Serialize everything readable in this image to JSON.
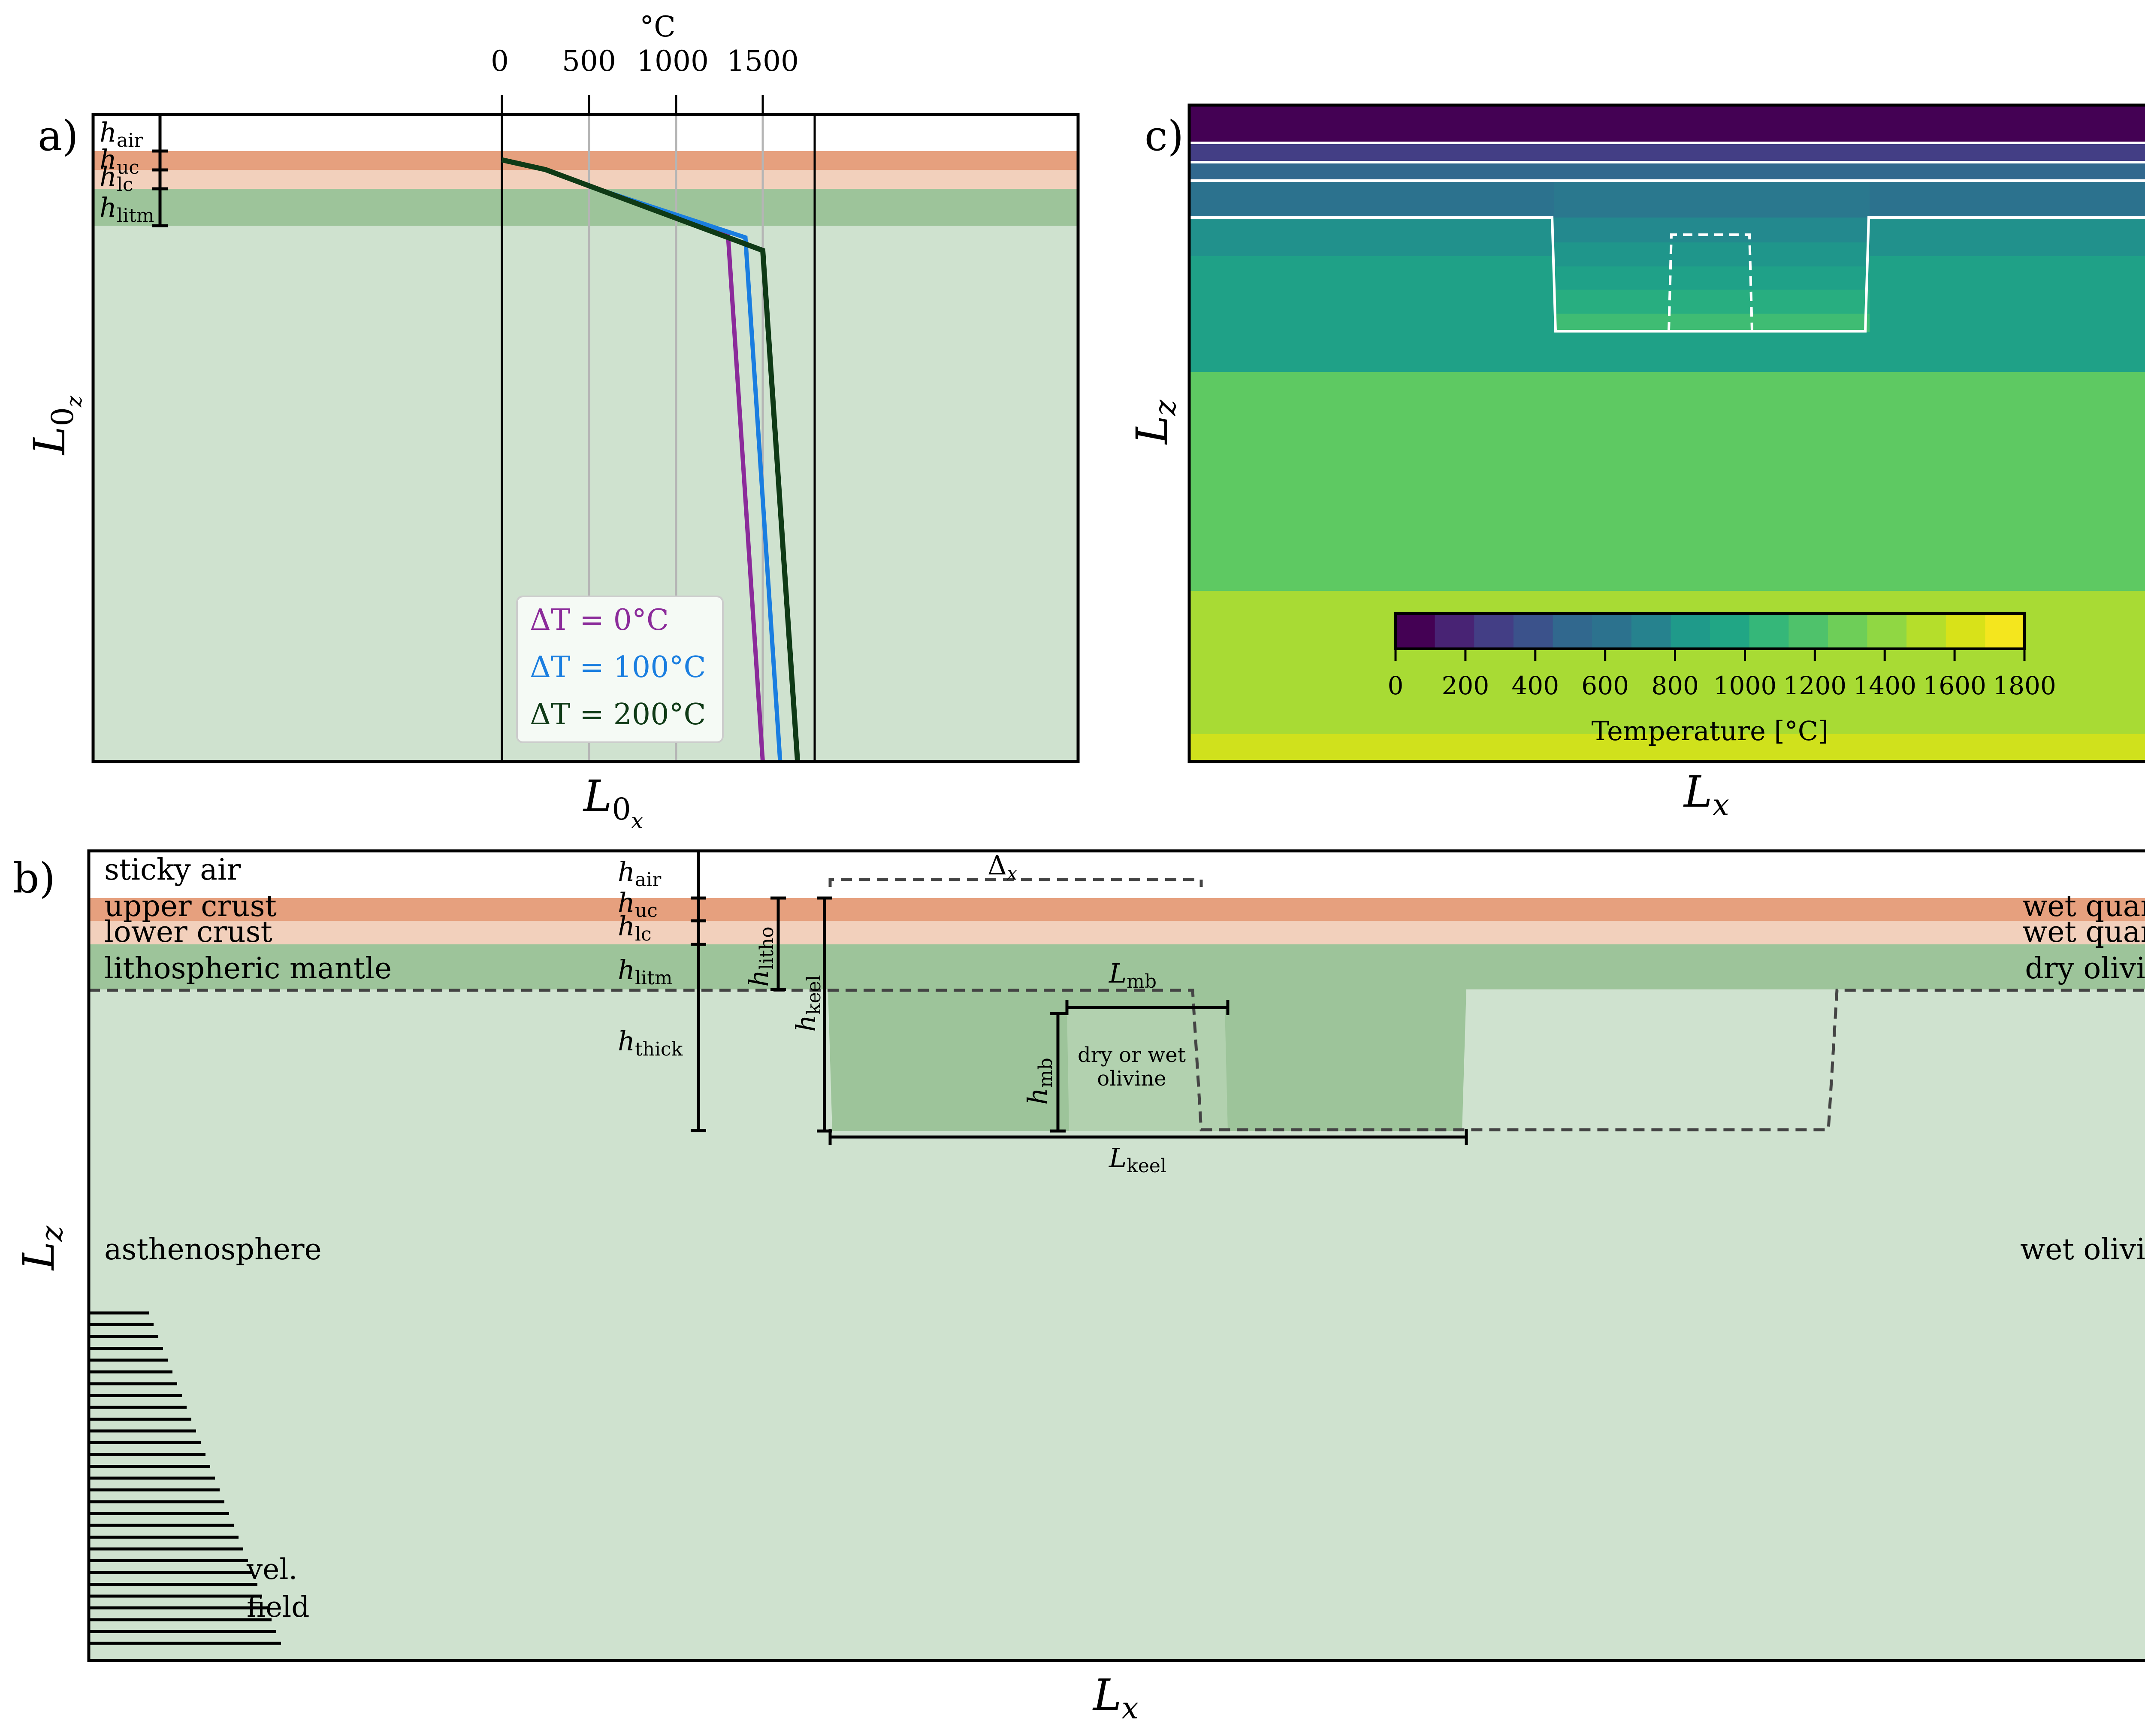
{
  "panel_a": {
    "label": "a)",
    "layer_labels": {
      "air": {
        "sym": "h",
        "sub": "air"
      },
      "uc": {
        "sym": "h",
        "sub": "uc"
      },
      "lc": {
        "sym": "h",
        "sub": "lc"
      },
      "litm": {
        "sym": "h",
        "sub": "litm"
      }
    },
    "y_label": {
      "sym": "L",
      "sub": "0",
      "subsub": "z"
    },
    "x_label": {
      "sym": "L",
      "sub": "0",
      "subsub": "x"
    },
    "temp_axis_unit": "°C",
    "temp_ticks": [
      "0",
      "500",
      "1000",
      "1500"
    ],
    "colors": {
      "air": "#ffffff",
      "uc": "#e6a07e",
      "lc": "#f2d0bc",
      "litm": "#9dc49a",
      "asth": "#cfe2cf"
    },
    "chart_data": {
      "type": "line",
      "xlabel": "°C",
      "xlim": [
        0,
        1800
      ],
      "x_ticks": [
        0,
        500,
        1000,
        1500
      ],
      "series": [
        {
          "name": "ΔT = 0°C",
          "color": "#8b2b9a",
          "x": [
            0,
            250,
            550,
            1300,
            1500
          ],
          "y_frac": [
            0.07,
            0.085,
            0.115,
            0.185,
            1.0
          ]
        },
        {
          "name": "ΔT = 100°C",
          "color": "#1a7ee0",
          "x": [
            0,
            250,
            550,
            1400,
            1600
          ],
          "y_frac": [
            0.07,
            0.085,
            0.115,
            0.19,
            1.0
          ]
        },
        {
          "name": "ΔT = 200°C",
          "color": "#0f3a16",
          "x": [
            0,
            250,
            550,
            1500,
            1700
          ],
          "y_frac": [
            0.07,
            0.085,
            0.115,
            0.21,
            1.0
          ]
        }
      ],
      "legend": {
        "position": "bottom",
        "entries": [
          "ΔT = 0°C",
          "ΔT = 100°C",
          "ΔT = 200°C"
        ]
      }
    }
  },
  "panel_b": {
    "label": "b)",
    "layers": [
      {
        "name": "sticky air",
        "material": ""
      },
      {
        "name": "upper crust",
        "material": "wet quartz"
      },
      {
        "name": "lower crust",
        "material": "wet quartz"
      },
      {
        "name": "lithospheric mantle",
        "material": "dry olivine"
      },
      {
        "name": "asthenosphere",
        "material": "wet olivine"
      }
    ],
    "dims": {
      "h_air": {
        "sym": "h",
        "sub": "air"
      },
      "h_uc": {
        "sym": "h",
        "sub": "uc"
      },
      "h_lc": {
        "sym": "h",
        "sub": "lc"
      },
      "h_litm": {
        "sym": "h",
        "sub": "litm"
      },
      "h_thick": {
        "sym": "h",
        "sub": "thick"
      },
      "h_litho": {
        "sym": "h",
        "sub": "litho"
      },
      "h_keel": {
        "sym": "h",
        "sub": "keel"
      },
      "h_mb": {
        "sym": "h",
        "sub": "mb"
      },
      "L_mb": {
        "sym": "L",
        "sub": "mb"
      },
      "L_keel": {
        "sym": "L",
        "sub": "keel"
      },
      "delta_x": {
        "sym": "Δ",
        "sub": "x"
      }
    },
    "mobile_belt_line1": "dry or wet",
    "mobile_belt_line2": "olivine",
    "vel_line1": "vel.",
    "vel_line2": "field",
    "x_label": {
      "sym": "L",
      "sub": "x"
    },
    "y_label": {
      "sym": "L",
      "sub": "z"
    },
    "colors": {
      "air": "#ffffff",
      "uc": "#e6a07e",
      "lc": "#f2d0bc",
      "litm": "#9dc49a",
      "asth": "#cfe2cf"
    }
  },
  "panel_c": {
    "label": "c)",
    "x_label": {
      "sym": "L",
      "sub": "x"
    },
    "y_label": {
      "sym": "L",
      "sub": "z"
    },
    "colorbar": {
      "label": "Temperature [°C]",
      "ticks": [
        "0",
        "200",
        "400",
        "600",
        "800",
        "1000",
        "1200",
        "1400",
        "1600",
        "1800"
      ],
      "min": 0,
      "max": 1800,
      "colors": [
        "#440154",
        "#482374",
        "#433e85",
        "#3b528b",
        "#31688e",
        "#2c728e",
        "#26828e",
        "#1f9a8a",
        "#21a685",
        "#35b779",
        "#4fc26b",
        "#6ece58",
        "#90d743",
        "#b5de2b",
        "#d8e219",
        "#f4e61e"
      ]
    },
    "temperature_bands": [
      {
        "value": 50,
        "color": "#440154"
      },
      {
        "value": 350,
        "color": "#433e85"
      },
      {
        "value": 500,
        "color": "#31688e"
      },
      {
        "value": 700,
        "color": "#2c728e"
      },
      {
        "value": 900,
        "color": "#21918c"
      },
      {
        "value": 1050,
        "color": "#1fa187"
      },
      {
        "value": 1200,
        "color": "#3fbc73"
      },
      {
        "value": 1300,
        "color": "#5ec962"
      },
      {
        "value": 1450,
        "color": "#7ad151"
      },
      {
        "value": 1600,
        "color": "#a8db34"
      },
      {
        "value": 1700,
        "color": "#d0e11c"
      }
    ]
  }
}
